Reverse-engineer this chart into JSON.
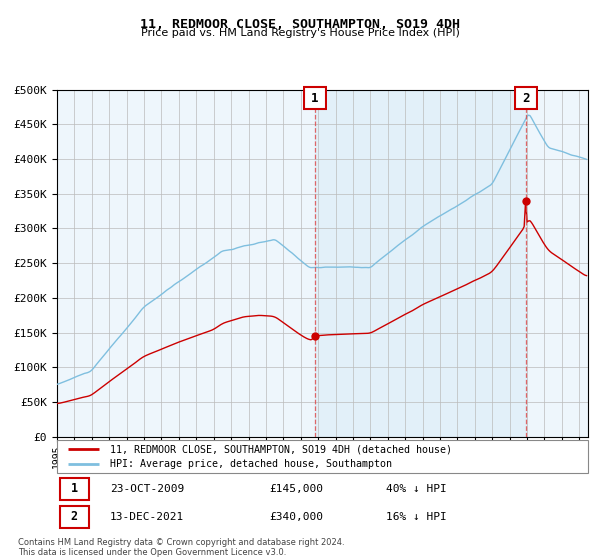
{
  "title": "11, REDMOOR CLOSE, SOUTHAMPTON, SO19 4DH",
  "subtitle": "Price paid vs. HM Land Registry's House Price Index (HPI)",
  "ylim": [
    0,
    500000
  ],
  "yticks": [
    0,
    50000,
    100000,
    150000,
    200000,
    250000,
    300000,
    350000,
    400000,
    450000,
    500000
  ],
  "ytick_labels": [
    "£0",
    "£50K",
    "£100K",
    "£150K",
    "£200K",
    "£250K",
    "£300K",
    "£350K",
    "£400K",
    "£450K",
    "£500K"
  ],
  "hpi_color": "#7fbfdf",
  "price_color": "#cc0000",
  "bg_color": "#ffffff",
  "plot_bg_color": "#eef6fc",
  "grid_color": "#bbbbbb",
  "purchase1_date_num": 2009.82,
  "purchase1_price": 145000,
  "purchase2_date_num": 2021.95,
  "purchase2_price": 340000,
  "legend1": "11, REDMOOR CLOSE, SOUTHAMPTON, SO19 4DH (detached house)",
  "legend2": "HPI: Average price, detached house, Southampton",
  "annot1_date": "23-OCT-2009",
  "annot1_price": "£145,000",
  "annot1_hpi": "40% ↓ HPI",
  "annot2_date": "13-DEC-2021",
  "annot2_price": "£340,000",
  "annot2_hpi": "16% ↓ HPI",
  "footnote": "Contains HM Land Registry data © Crown copyright and database right 2024.\nThis data is licensed under the Open Government Licence v3.0.",
  "xlim_start": 1995.0,
  "xlim_end": 2025.5
}
